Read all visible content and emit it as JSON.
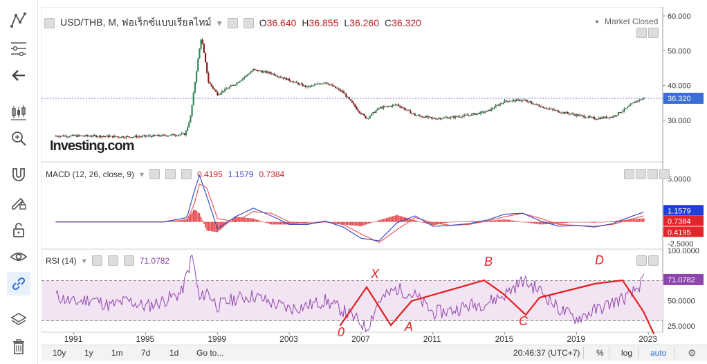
{
  "toolbar": {
    "icons": [
      "trend-lines-icon",
      "fibonacci-icon",
      "back-arrow-icon",
      "candles-icon",
      "zoom-icon",
      "magnet-icon",
      "draw-lock-icon",
      "unlock-icon",
      "eye-icon",
      "link-icon",
      "layers-icon",
      "trash-icon"
    ]
  },
  "header": {
    "symbol": "USD/THB, M, ฟอเร็กซ์แบบเรียลไทม์",
    "open_label": "O",
    "open": "36.640",
    "high_label": "H",
    "high": "36.855",
    "low_label": "L",
    "low": "36.260",
    "close_label": "C",
    "close": "36.320",
    "market_status": "Market Closed",
    "logo": "Investing.com"
  },
  "macd": {
    "label": "MACD (12, 26, close, 9)",
    "hist": "0.4195",
    "macd": "1.1579",
    "signal": "0.7384",
    "colors": {
      "hist": "#e0262a",
      "macd": "#3b4cc0",
      "signal": "#e85d5d"
    }
  },
  "rsi": {
    "label": "RSI (14)",
    "value": "71.0782",
    "color": "#8e44ad"
  },
  "bottom_bar": {
    "ranges": [
      "10y",
      "1y",
      "1m",
      "7d",
      "1d",
      "Go to..."
    ],
    "time": "20:46:37 (UTC+7)",
    "percent": "%",
    "log": "log",
    "auto": "auto"
  },
  "chart_data": [
    {
      "type": "candlestick",
      "title": "USD/THB, M, ฟอเร็กซ์แบบเรียลไทม์",
      "x_ticks": [
        "1991",
        "1995",
        "1999",
        "2003",
        "2007",
        "2011",
        "2015",
        "2019",
        "2023"
      ],
      "y_ticks": [
        "60.000",
        "50.000",
        "40.000",
        "30.000"
      ],
      "ylim": [
        20,
        61
      ],
      "current_price": "36.320",
      "x": [
        1990,
        1992,
        1994,
        1996,
        1997.2,
        1997.5,
        1997.9,
        1998.1,
        1998.5,
        1999,
        2000,
        2001,
        2002,
        2003,
        2004,
        2005,
        2006,
        2006.8,
        2007.3,
        2008,
        2009,
        2010,
        2011,
        2012,
        2013,
        2014,
        2015,
        2016,
        2017,
        2018,
        2019,
        2020,
        2021,
        2021.8,
        2022.3,
        2022.8
      ],
      "y": [
        25.5,
        25.5,
        25.2,
        25.6,
        26.0,
        31.0,
        47.0,
        54.0,
        41.0,
        37.5,
        40.5,
        44.5,
        43.5,
        41.5,
        39.5,
        41.0,
        38.0,
        33.0,
        30.5,
        33.5,
        34.5,
        31.5,
        30.5,
        30.8,
        31.5,
        32.5,
        35.5,
        35.8,
        34.0,
        32.5,
        31.5,
        30.5,
        31.0,
        33.5,
        35.5,
        36.32
      ]
    },
    {
      "type": "line",
      "title": "MACD (12, 26, close, 9)",
      "y_ticks": [
        "5.0000",
        "-2.5000"
      ],
      "ylim": [
        -3,
        6
      ],
      "series_labels": [
        "0.4195",
        "1.1579",
        "0.7384"
      ],
      "x": [
        1990,
        1996,
        1997.3,
        1997.7,
        1998.0,
        1998.4,
        1999,
        2000,
        2001,
        2002,
        2003,
        2004,
        2005,
        2006,
        2007,
        2008,
        2009,
        2010,
        2011,
        2012,
        2013,
        2014,
        2015,
        2016,
        2017,
        2018,
        2019,
        2020,
        2021,
        2022,
        2022.8
      ],
      "macd": [
        0,
        0,
        0.5,
        3.5,
        5.4,
        3.0,
        -0.8,
        0.6,
        1.6,
        0.7,
        -0.3,
        -0.3,
        0.1,
        -0.6,
        -1.9,
        -2.2,
        -0.1,
        0.7,
        -0.5,
        -0.4,
        -0.2,
        0.2,
        0.9,
        1.0,
        0.1,
        -0.5,
        -0.4,
        -0.6,
        -0.2,
        0.6,
        1.16
      ],
      "signal": [
        0,
        0,
        0.2,
        2.0,
        4.4,
        4.0,
        0.4,
        0.0,
        1.2,
        1.0,
        0.0,
        -0.2,
        0.0,
        -0.3,
        -1.4,
        -2.4,
        -0.9,
        0.5,
        -0.1,
        -0.4,
        -0.3,
        0.1,
        0.6,
        1.0,
        0.4,
        -0.3,
        -0.4,
        -0.5,
        -0.3,
        0.3,
        0.74
      ]
    },
    {
      "type": "line",
      "title": "RSI (14)",
      "y_ticks": [
        "100.0000",
        "50.0000",
        "25.0000"
      ],
      "ylim": [
        20,
        100
      ],
      "band": [
        30,
        70
      ],
      "x": [
        1990,
        1991,
        1992,
        1993,
        1994,
        1995,
        1996,
        1997,
        1997.6,
        1998,
        1998.4,
        1999,
        2000,
        2001,
        2002,
        2003,
        2004,
        2005,
        2006,
        2007,
        2007.3,
        2008,
        2009,
        2010,
        2011,
        2012,
        2013,
        2014,
        2015,
        2016,
        2017,
        2018,
        2019,
        2020,
        2021,
        2022,
        2022.8
      ],
      "y": [
        55,
        48,
        52,
        45,
        50,
        44,
        50,
        58,
        95,
        50,
        60,
        45,
        52,
        55,
        48,
        42,
        45,
        50,
        40,
        28,
        22,
        50,
        62,
        55,
        38,
        40,
        45,
        48,
        56,
        70,
        60,
        42,
        32,
        40,
        48,
        55,
        71.08
      ]
    }
  ],
  "annotations": {
    "marks": [
      "X",
      "A",
      "B",
      "C",
      "D",
      "0"
    ]
  }
}
